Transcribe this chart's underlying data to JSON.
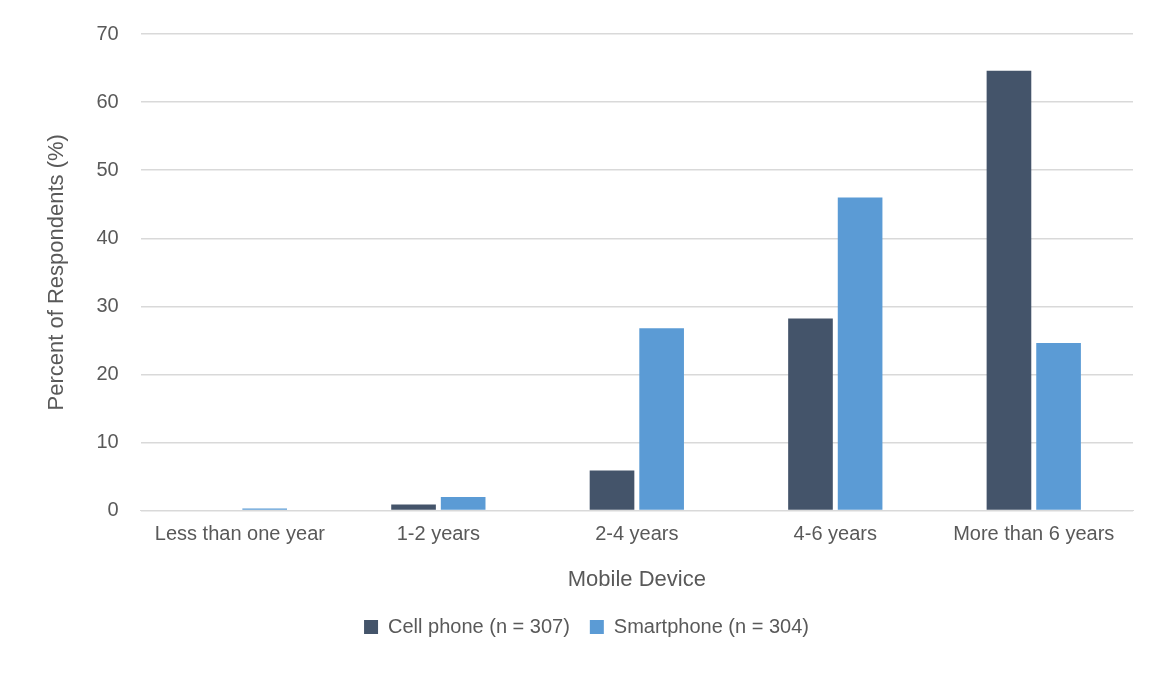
{
  "chart_data": {
    "type": "bar",
    "xlabel": "Mobile Device",
    "ylabel": "Percent of Respondents (%)",
    "categories": [
      "Less than one year",
      "1-2 years",
      "2-4 years",
      "4-6 years",
      "More than 6 years"
    ],
    "series": [
      {
        "name": "Cell phone (n = 307)",
        "color": "#44546a",
        "values": [
          0,
          0.9,
          5.9,
          28.2,
          64.6
        ]
      },
      {
        "name": "Smartphone (n = 304)",
        "color": "#5b9bd5",
        "values": [
          0.3,
          2.0,
          26.8,
          46.0,
          24.6
        ]
      }
    ],
    "ylim": [
      0,
      70
    ],
    "yticks": [
      0,
      10,
      20,
      30,
      40,
      50,
      60,
      70
    ],
    "grid": "y",
    "legend": "bottom"
  }
}
